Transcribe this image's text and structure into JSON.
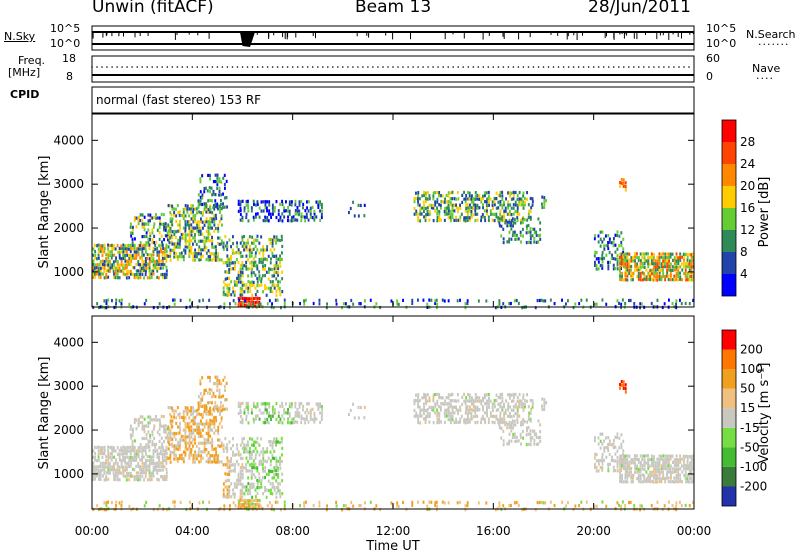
{
  "header": {
    "station": "Unwin (fitACF)",
    "beam": "Beam 13",
    "date": "28/Jun/2011"
  },
  "strip": {
    "nsky_label": "N.Sky",
    "nsearch_label": "N.Search",
    "left_tick_top": "10^5",
    "left_tick_bottom": "10^0",
    "right_tick_top": "10^5",
    "right_tick_bottom": "10^0",
    "freq_label": "Freq.",
    "freq_unit": "[MHz]",
    "freq_tick_top": "18",
    "freq_tick_bottom": "8",
    "nave_label": "Nave",
    "nave_tick_top": "60",
    "nave_tick_bottom": "0",
    "cpid_label": "CPID",
    "cpid_text": "normal (fast stereo) 153 RF"
  },
  "colors": {
    "power_scale": [
      "#0000ff",
      "#2244aa",
      "#2e8b57",
      "#66cc33",
      "#ffcc00",
      "#ff8800",
      "#ff4400",
      "#ff0000"
    ],
    "velocity_scale": [
      "#2233aa",
      "#3a7a3a",
      "#44bb33",
      "#77dd44",
      "#c8c8c0",
      "#f0c080",
      "#f0a020",
      "#ff7700",
      "#ff0000"
    ]
  },
  "chart_data": [
    {
      "type": "heatmap",
      "name": "power",
      "ylabel": "Slant Range [km]",
      "yticks": [
        "1000",
        "2000",
        "3000",
        "4000"
      ],
      "ylim": [
        200,
        4600
      ],
      "colorbar_label": "Power [dB]",
      "colorbar_ticks": [
        "4",
        "8",
        "12",
        "16",
        "20",
        "24",
        "28"
      ],
      "clim": [
        0,
        32
      ]
    },
    {
      "type": "heatmap",
      "name": "velocity",
      "ylabel": "Slant Range [km]",
      "yticks": [
        "1000",
        "2000",
        "3000",
        "4000"
      ],
      "ylim": [
        200,
        4600
      ],
      "colorbar_label": "Velocity [m s⁻¹]",
      "colorbar_ticks": [
        "200",
        "100",
        "50",
        "15",
        "-15",
        "-50",
        "-100",
        "-200"
      ],
      "xlabel": "Time UT",
      "xticks": [
        "00:00",
        "04:00",
        "08:00",
        "12:00",
        "16:00",
        "20:00",
        "00:00"
      ],
      "xlim_hours": [
        0,
        24
      ]
    }
  ]
}
